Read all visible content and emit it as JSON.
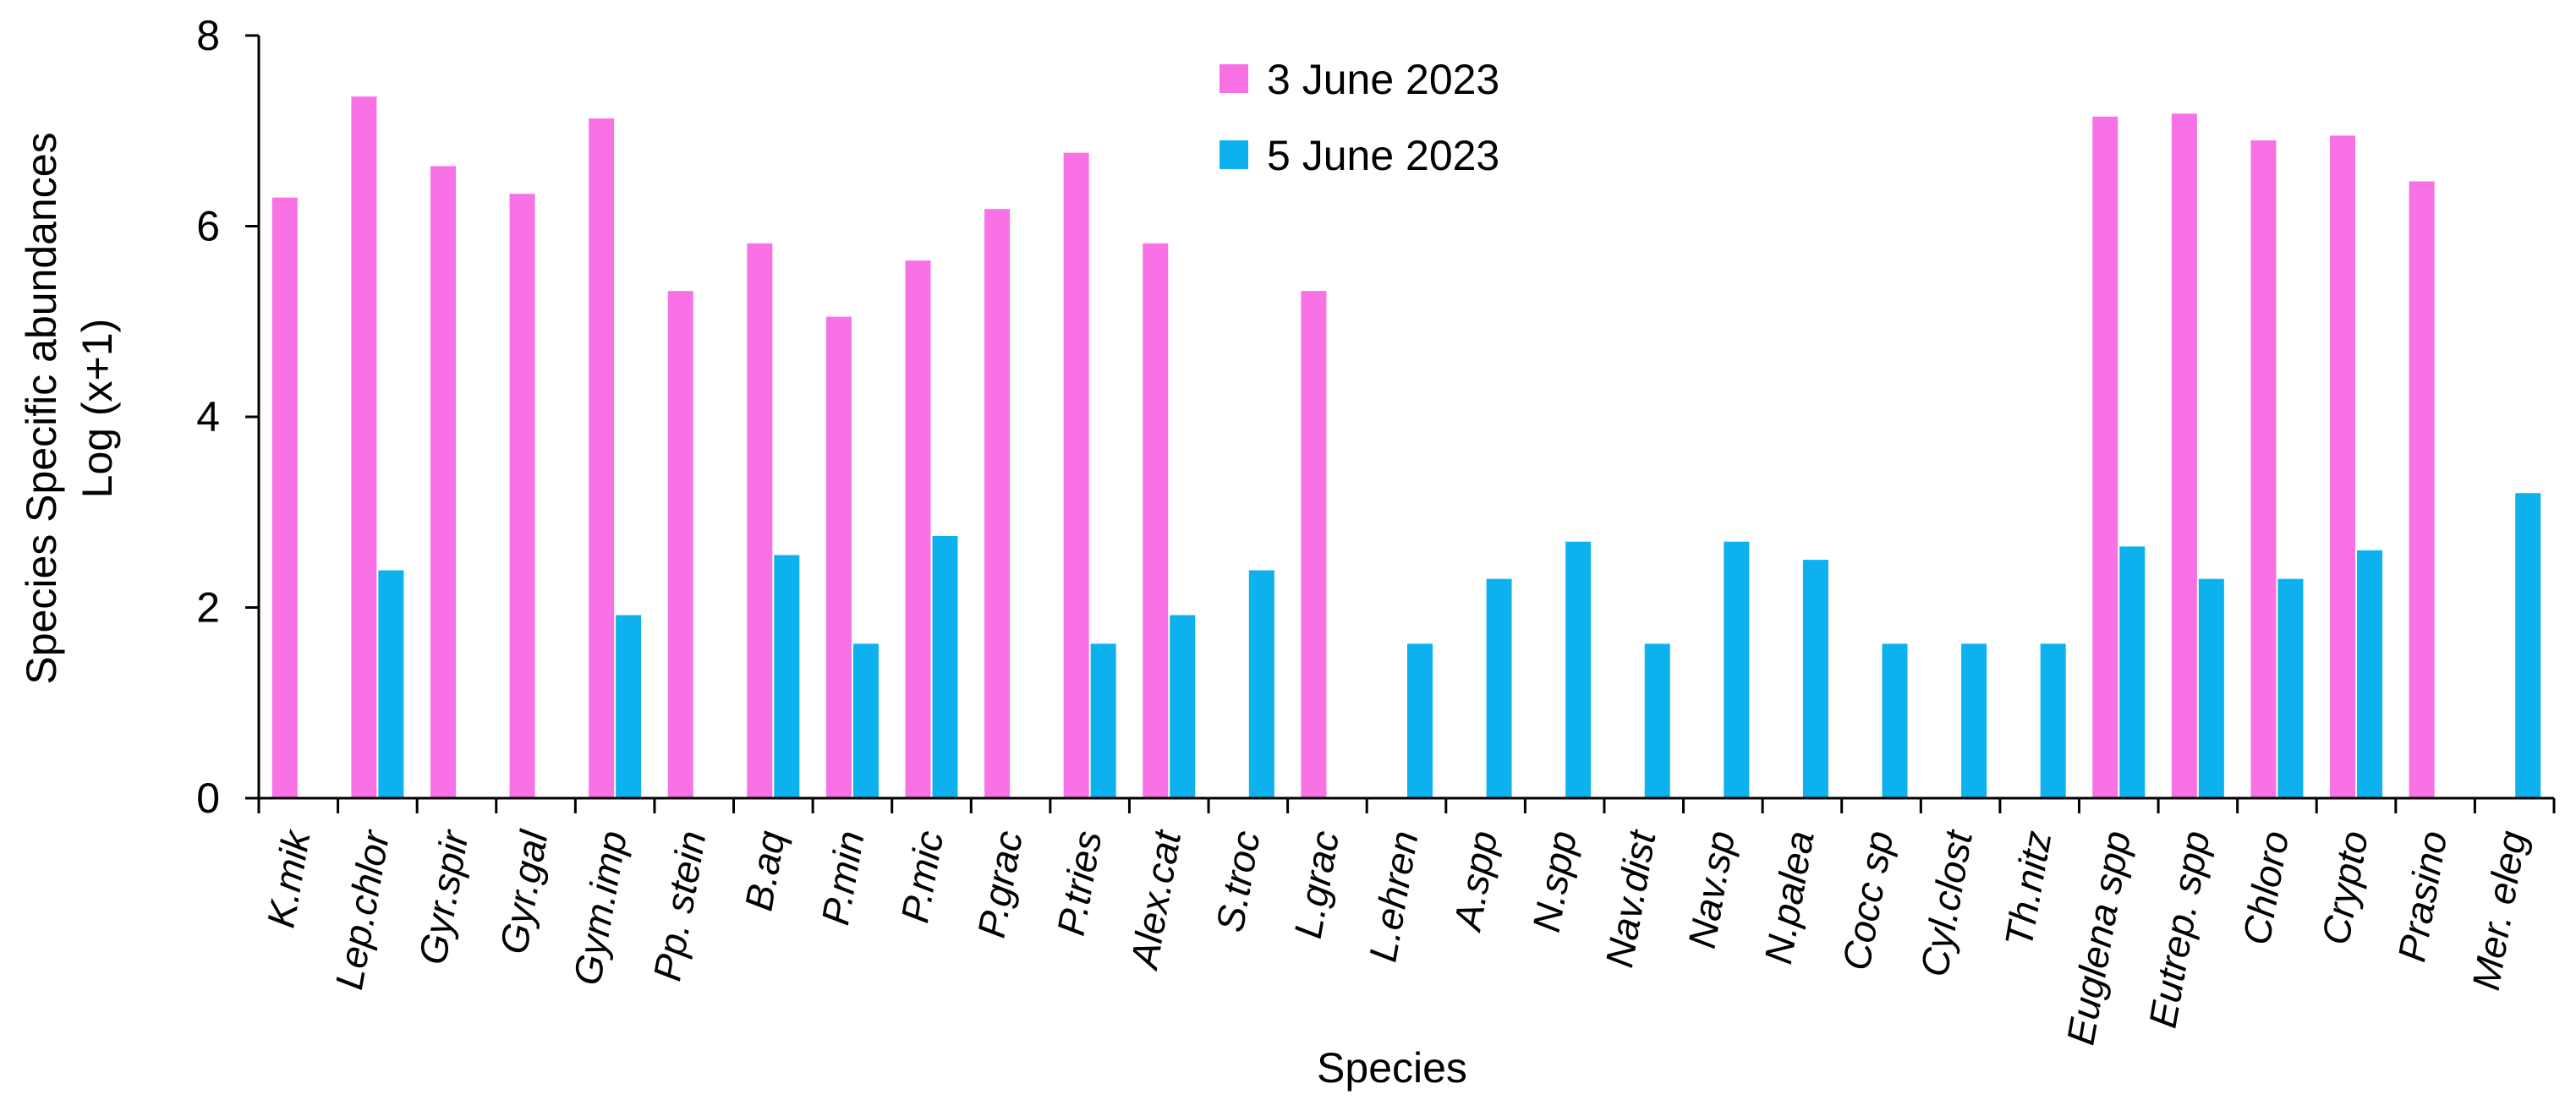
{
  "chart_data": {
    "type": "bar",
    "title": "",
    "xlabel": "Species",
    "ylabel_line1": "Species Specific abundances",
    "ylabel_line2": "Log (x+1)",
    "ylim": [
      0,
      8
    ],
    "yticks": [
      "0",
      "2",
      "4",
      "6",
      "8"
    ],
    "legend_position": "top-center",
    "categories": [
      "K.mik",
      "Lep.chlor",
      "Gyr.spir",
      "Gyr.gal",
      "Gym.imp",
      "Pp. stein",
      "B.aq",
      "P.min",
      "P.mic",
      "P.grac",
      "P.tries",
      "Alex.cat",
      "S.troc",
      "L.grac",
      "L.ehren",
      "A.spp",
      "N.spp",
      "Nav.dist",
      "Nav.sp",
      "N.palea",
      "Cocc sp",
      "Cyl.clost",
      "Th.nitz",
      "Euglena spp",
      "Eutrep. spp",
      "Chloro",
      "Crypto",
      "Prasino",
      "Mer. eleg"
    ],
    "series": [
      {
        "name": "3 June 2023",
        "color": "#f872e6",
        "values": [
          6.3,
          7.36,
          6.63,
          6.34,
          7.13,
          5.32,
          5.82,
          5.05,
          5.64,
          6.18,
          6.77,
          5.82,
          0,
          5.32,
          0,
          0,
          0,
          0,
          0,
          0,
          0,
          0,
          0,
          7.15,
          7.18,
          6.9,
          6.95,
          6.47,
          0
        ]
      },
      {
        "name": "5 June 2023",
        "color": "#0db1ee",
        "values": [
          0,
          2.39,
          0,
          0,
          1.92,
          0,
          2.55,
          1.62,
          2.75,
          0,
          1.62,
          1.92,
          2.39,
          0,
          1.62,
          2.3,
          2.69,
          1.62,
          2.69,
          2.5,
          1.62,
          1.62,
          1.62,
          2.64,
          2.3,
          2.3,
          2.6,
          0,
          3.2
        ]
      }
    ]
  }
}
